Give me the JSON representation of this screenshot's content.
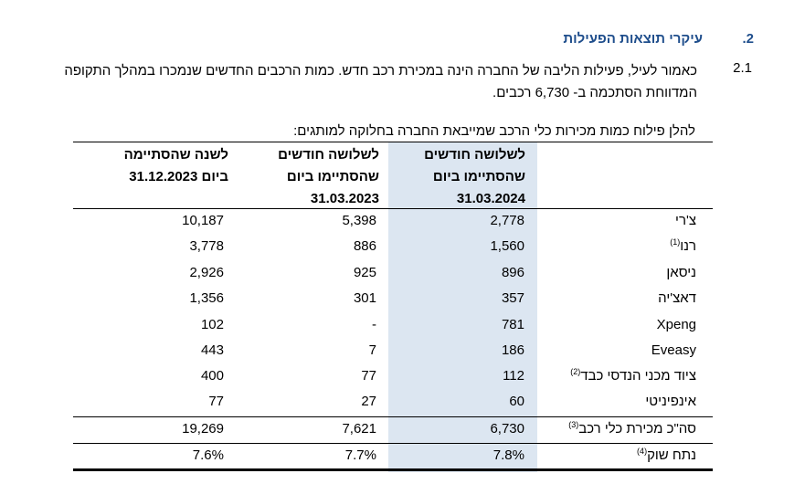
{
  "section": {
    "number": "2.",
    "title": "עיקרי תוצאות הפעילות"
  },
  "paragraph": {
    "number": "2.1",
    "text": "כאמור לעיל, פעילות הליבה של החברה הינה במכירת רכב חדש. כמות הרכבים החדשים שנמכרו במהלך התקופה המדווחת הסתכמה ב- 6,730 רכבים."
  },
  "table_caption": "להלן פילוח כמות מכירות כלי הרכב שמייבאת החברה בחלוקה למותגים:",
  "columns": {
    "c1": "לשלושה חודשים שהסתיימו ביום 31.03.2024",
    "c2": "לשלושה חודשים שהסתיימו ביום 31.03.2023",
    "c3": "לשנה שהסתיימה ביום 31.12.2023"
  },
  "rows": [
    {
      "name": "צ'רי",
      "note": "",
      "q1_2024": "2,778",
      "q1_2023": "5,398",
      "fy_2023": "10,187"
    },
    {
      "name": "רנו",
      "note": "(1)",
      "q1_2024": "1,560",
      "q1_2023": "886",
      "fy_2023": "3,778"
    },
    {
      "name": "ניסאן",
      "note": "",
      "q1_2024": "896",
      "q1_2023": "925",
      "fy_2023": "2,926"
    },
    {
      "name": "דאצ'יה",
      "note": "",
      "q1_2024": "357",
      "q1_2023": "301",
      "fy_2023": "1,356"
    },
    {
      "name": "Xpeng",
      "note": "",
      "q1_2024": "781",
      "q1_2023": "-",
      "fy_2023": "102"
    },
    {
      "name": "Eveasy",
      "note": "",
      "q1_2024": "186",
      "q1_2023": "7",
      "fy_2023": "443"
    },
    {
      "name": "ציוד מכני הנדסי כבד",
      "note": "(2)",
      "q1_2024": "112",
      "q1_2023": "77",
      "fy_2023": "400"
    },
    {
      "name": "אינפיניטי",
      "note": "",
      "q1_2024": "60",
      "q1_2023": "27",
      "fy_2023": "77"
    }
  ],
  "total": {
    "name": "סה\"כ מכירת כלי רכב",
    "note": "(3)",
    "q1_2024": "6,730",
    "q1_2023": "7,621",
    "fy_2023": "19,269"
  },
  "market_share": {
    "name": "נתח שוק",
    "note": "(4)",
    "q1_2024": "7.8%",
    "q1_2023": "7.7%",
    "fy_2023": "7.6%"
  },
  "colors": {
    "heading": "#1f4e8c",
    "highlight": "#dce6f1"
  }
}
